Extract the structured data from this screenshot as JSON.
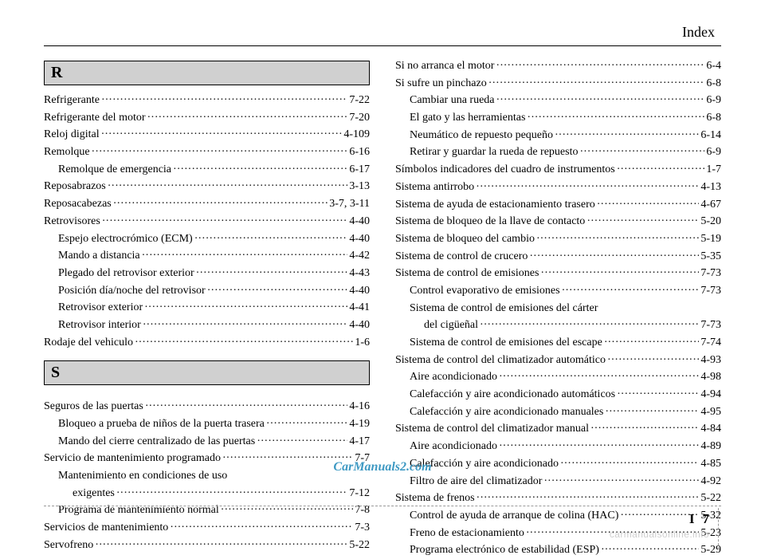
{
  "header": {
    "title": "Index"
  },
  "watermark": "CarManuals2.com",
  "footer": {
    "section": "I",
    "page": "7",
    "site": "carmanualsonline.info"
  },
  "left": {
    "sections": [
      {
        "letter": "R",
        "entries": [
          {
            "label": "Refrigerante",
            "ref": "7-22",
            "level": 0
          },
          {
            "label": "Refrigerante del motor",
            "ref": "7-20",
            "level": 0
          },
          {
            "label": "Reloj digital",
            "ref": "4-109",
            "level": 0
          },
          {
            "label": "Remolque",
            "ref": "6-16",
            "level": 0
          },
          {
            "label": "Remolque de emergencia",
            "ref": "6-17",
            "level": 1
          },
          {
            "label": "Reposabrazos",
            "ref": "3-13",
            "level": 0
          },
          {
            "label": "Reposacabezas",
            "ref": "3-7, 3-11",
            "level": 0
          },
          {
            "label": "Retrovisores",
            "ref": "4-40",
            "level": 0
          },
          {
            "label": "Espejo electrocrómico (ECM)",
            "ref": "4-40",
            "level": 1
          },
          {
            "label": "Mando a distancia",
            "ref": "4-42",
            "level": 1
          },
          {
            "label": "Plegado del retrovisor exterior",
            "ref": "4-43",
            "level": 1
          },
          {
            "label": "Posición día/noche del retrovisor",
            "ref": "4-40",
            "level": 1
          },
          {
            "label": "Retrovisor exterior",
            "ref": "4-41",
            "level": 1
          },
          {
            "label": "Retrovisor interior",
            "ref": "4-40",
            "level": 1
          },
          {
            "label": "Rodaje del vehiculo",
            "ref": "1-6",
            "level": 0
          }
        ]
      },
      {
        "letter": "S",
        "entries": [
          {
            "label": "Seguros de las puertas",
            "ref": "4-16",
            "level": 0
          },
          {
            "label": "Bloqueo a prueba de niños de la puerta trasera",
            "ref": "4-19",
            "level": 1
          },
          {
            "label": "Mando del cierre centralizado de las puertas",
            "ref": "4-17",
            "level": 1
          },
          {
            "label": "Servicio de mantenimiento programado",
            "ref": "7-7",
            "level": 0
          },
          {
            "label": "Mantenimiento en condiciones de uso",
            "cont": "exigentes",
            "ref": "7-12",
            "level": 1
          },
          {
            "label": "Programa de mantenimiento normal",
            "ref": "7-8",
            "level": 1
          },
          {
            "label": "Servicios de mantenimiento",
            "ref": "7-3",
            "level": 0
          },
          {
            "label": "Servofreno",
            "ref": "5-22",
            "level": 0
          }
        ]
      }
    ]
  },
  "right": {
    "entries": [
      {
        "label": "Si no arranca el motor",
        "ref": "6-4",
        "level": 0
      },
      {
        "label": "Si sufre un pinchazo",
        "ref": "6-8",
        "level": 0
      },
      {
        "label": "Cambiar una rueda",
        "ref": "6-9",
        "level": 1
      },
      {
        "label": "El gato y las herramientas",
        "ref": "6-8",
        "level": 1
      },
      {
        "label": "Neumático de repuesto pequeño",
        "ref": "6-14",
        "level": 1
      },
      {
        "label": "Retirar y guardar la rueda de repuesto",
        "ref": "6-9",
        "level": 1
      },
      {
        "label": "Símbolos indicadores del cuadro de instrumentos",
        "ref": "1-7",
        "level": 0
      },
      {
        "label": "Sistema antirrobo",
        "ref": "4-13",
        "level": 0
      },
      {
        "label": "Sistema de ayuda de estacionamiento trasero",
        "ref": "4-67",
        "level": 0
      },
      {
        "label": "Sistema de bloqueo de la llave de contacto",
        "ref": "5-20",
        "level": 0
      },
      {
        "label": "Sistema de bloqueo del cambio",
        "ref": "5-19",
        "level": 0
      },
      {
        "label": "Sistema de control de crucero",
        "ref": "5-35",
        "level": 0
      },
      {
        "label": "Sistema de control de emisiones",
        "ref": "7-73",
        "level": 0
      },
      {
        "label": "Control evaporativo de emisiones",
        "ref": "7-73",
        "level": 1
      },
      {
        "label": "Sistema de control de emisiones del cárter",
        "cont": "del cigüeñal",
        "ref": "7-73",
        "level": 1
      },
      {
        "label": "Sistema de control de emisiones del escape",
        "ref": "7-74",
        "level": 1
      },
      {
        "label": "Sistema de control del climatizador automático",
        "ref": "4-93",
        "level": 0
      },
      {
        "label": "Aire acondicionado",
        "ref": "4-98",
        "level": 1
      },
      {
        "label": "Calefacción y aire acondicionado automáticos",
        "ref": "4-94",
        "level": 1
      },
      {
        "label": "Calefacción y aire acondicionado manuales",
        "ref": "4-95",
        "level": 1
      },
      {
        "label": "Sistema de control del climatizador manual",
        "ref": "4-84",
        "level": 0
      },
      {
        "label": "Aire acondicionado",
        "ref": "4-89",
        "level": 1
      },
      {
        "label": "Calefacción y aire acondicionado",
        "ref": "4-85",
        "level": 1
      },
      {
        "label": "Filtro de aire del climatizador",
        "ref": "4-92",
        "level": 1
      },
      {
        "label": "Sistema de frenos",
        "ref": "5-22",
        "level": 0
      },
      {
        "label": "Control de ayuda de arranque de colina (HAC)",
        "ref": "5-32",
        "level": 1
      },
      {
        "label": "Freno de estacionamiento",
        "ref": "5-23",
        "level": 1
      },
      {
        "label": "Programa electrónico de estabilidad (ESP)",
        "ref": "5-29",
        "level": 1
      }
    ]
  }
}
